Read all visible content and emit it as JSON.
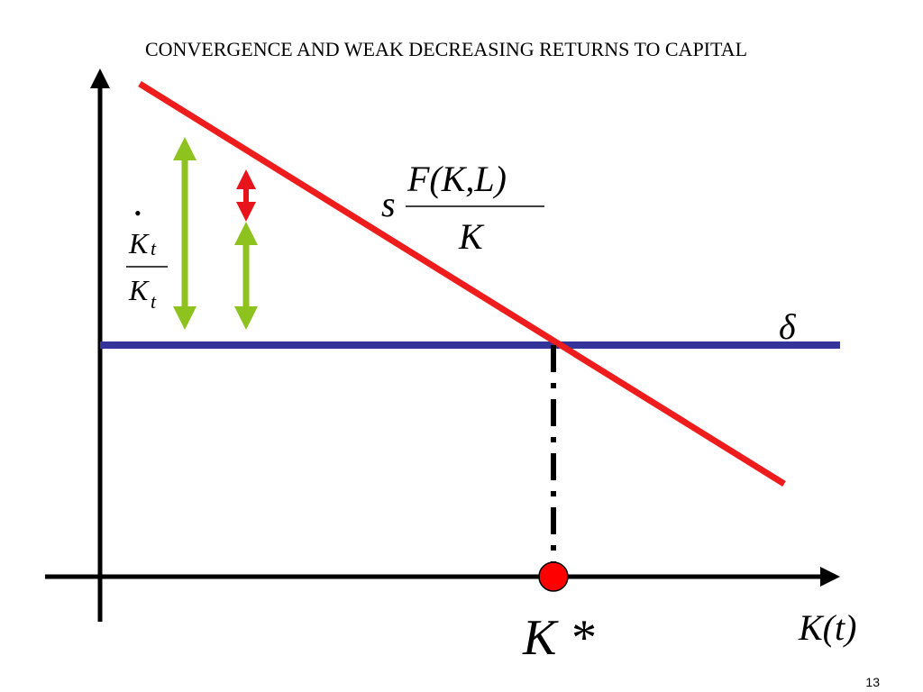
{
  "slide": {
    "title": "CONVERGENCE AND WEAK DECREASING RETURNS TO CAPITAL",
    "page_number": "13"
  },
  "diagram": {
    "curve_label": {
      "prefix": "s",
      "numerator": "F(K,L)",
      "denominator": "K"
    },
    "delta_label": "δ",
    "growth_label": {
      "dot": "•",
      "numerator": "K",
      "numerator_subscript": "t",
      "denominator": "K",
      "denominator_subscript": "t"
    },
    "steady_state_label": "K *",
    "x_axis_label": "K(t)"
  },
  "colors": {
    "curve": "#ee1c1c",
    "delta_line": "#333399",
    "green_arrow": "#8dc21f",
    "red_arrow": "#e8141b",
    "axes": "#000000",
    "steady_state_point": "#ff0000"
  }
}
